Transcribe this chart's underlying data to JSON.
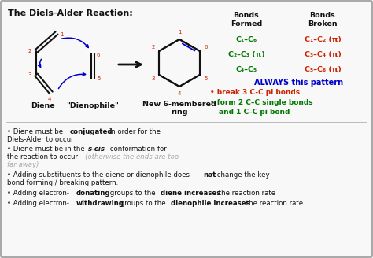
{
  "title": "The Diels-Alder Reaction:",
  "bg_color": "#f8f8f8",
  "border_color": "#aaaaaa",
  "black": "#111111",
  "red": "#cc2200",
  "green": "#007700",
  "blue": "#0000cc",
  "gray": "#aaaaaa",
  "bonds_formed_header": "Bonds\nFormed",
  "bonds_broken_header": "Bonds\nBroken",
  "bonds_formed": [
    "C₁–C₆",
    "C₂–C₃ (π)",
    "C₄–C₅"
  ],
  "bonds_broken": [
    "C₁–C₂ (π)",
    "C₃–C₄ (π)",
    "C₅–C₆ (π)"
  ],
  "always_text": "ALWAYS this pattern",
  "bullet1_red": "break 3 C-C pi bonds",
  "bullet2_green_1": "form 2 C–C single bonds",
  "bullet2_green_2": "and 1 C–C pi bond",
  "diene_label": "Diene",
  "dienophile_label": "\"Dienophile\"",
  "product_label_1": "New 6-membered",
  "product_label_2": "ring"
}
